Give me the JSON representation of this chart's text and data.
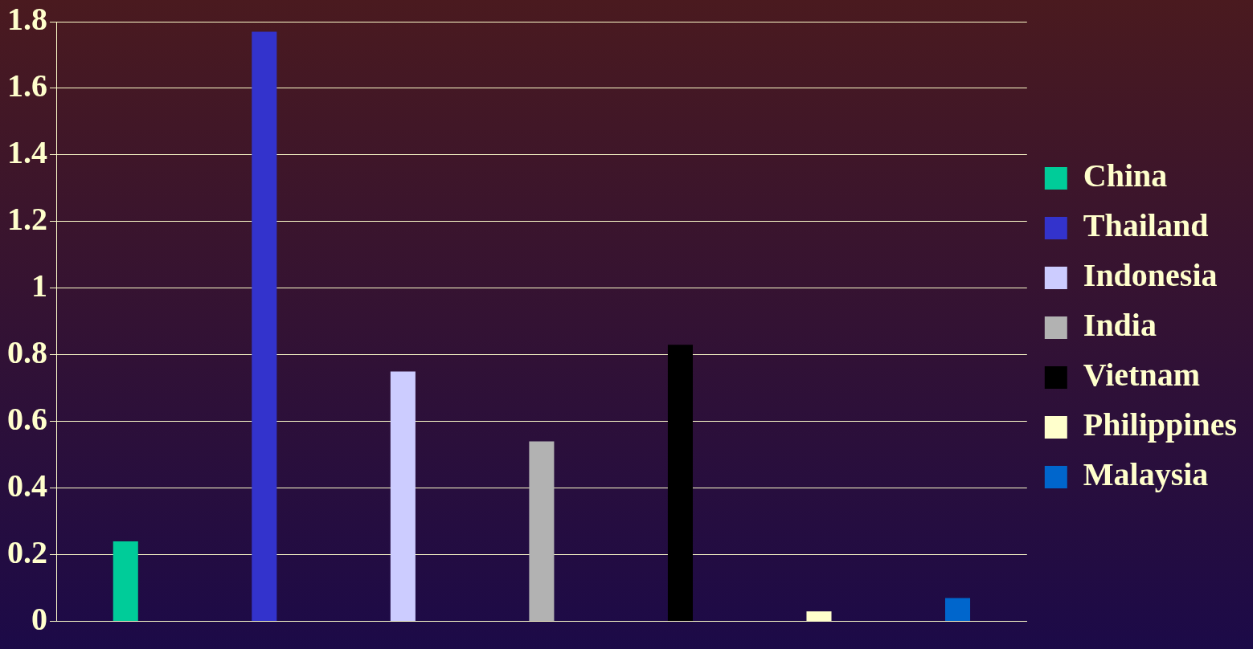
{
  "chart_data": {
    "type": "bar",
    "categories": [
      null,
      null,
      null,
      null,
      null,
      null,
      null
    ],
    "series": [
      {
        "name": "China",
        "color": "#00cc99",
        "values": [
          0.24,
          null,
          null,
          null,
          null,
          null,
          null
        ]
      },
      {
        "name": "Thailand",
        "color": "#3333cc",
        "values": [
          null,
          1.77,
          null,
          null,
          null,
          null,
          null
        ]
      },
      {
        "name": "Indonesia",
        "color": "#ccccff",
        "values": [
          null,
          null,
          0.75,
          null,
          null,
          null,
          null
        ]
      },
      {
        "name": "India",
        "color": "#b2b2b2",
        "values": [
          null,
          null,
          null,
          0.54,
          null,
          null,
          null
        ]
      },
      {
        "name": "Vietnam",
        "color": "#000000",
        "values": [
          null,
          null,
          null,
          null,
          0.83,
          null,
          null
        ]
      },
      {
        "name": "Philippines",
        "color": "#ffffcc",
        "values": [
          null,
          null,
          null,
          null,
          null,
          0.03,
          null
        ]
      },
      {
        "name": "Malaysia",
        "color": "#0066cc",
        "values": [
          null,
          null,
          null,
          null,
          null,
          null,
          0.07
        ]
      }
    ],
    "ylim": [
      0,
      1.8
    ],
    "yticks": [
      0,
      0.2,
      0.4,
      0.6,
      0.8,
      1,
      1.2,
      1.4,
      1.6,
      1.8
    ],
    "grid": "y",
    "legend": "right"
  }
}
